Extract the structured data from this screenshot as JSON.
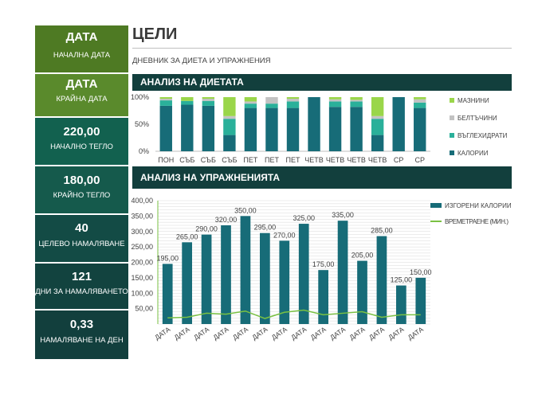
{
  "title": "ЦЕЛИ",
  "subtitle": "ДНЕВНИК ЗА ДИЕТА И УПРАЖНЕНИЯ",
  "colors": {
    "calories": "#176c78",
    "carbs": "#2ab09a",
    "protein": "#c2c2c2",
    "fat": "#9ad64a",
    "header": "#123f3d",
    "line": "#7ac143"
  },
  "tiles": [
    {
      "value": "ДАТА",
      "label": "НАЧАЛНА ДАТА"
    },
    {
      "value": "ДАТА",
      "label": "КРАЙНА ДАТА"
    },
    {
      "value": "220,00",
      "label": "НАЧАЛНО ТЕГЛО"
    },
    {
      "value": "180,00",
      "label": "КРАЙНО ТЕГЛО"
    },
    {
      "value": "40",
      "label": "ЦЕЛЕВО НАМАЛЯВАНЕ"
    },
    {
      "value": "121",
      "label": "ДНИ ЗА НАМАЛЯВАНЕТО"
    },
    {
      "value": "0,33",
      "label": "НАМАЛЯВАНЕ НА ДЕН"
    }
  ],
  "diet": {
    "header": "АНАЛИЗ НА ДИЕТАТА",
    "chart_data": {
      "type": "bar",
      "stacked_percent": true,
      "categories": [
        "ПОН",
        "СЪБ",
        "СЪБ",
        "СЪБ",
        "ПЕТ",
        "ПЕТ",
        "ПЕТ",
        "ЧЕТВ",
        "ЧЕТВ",
        "ЧЕТВ",
        "ЧЕТВ",
        "СР",
        "СР"
      ],
      "yticks": [
        "0%",
        "50%",
        "100%"
      ],
      "ylim": [
        0,
        100
      ],
      "legend_position": "right",
      "series": [
        {
          "name": "КАЛОРИИ",
          "values": [
            84,
            86,
            84,
            30,
            80,
            80,
            80,
            100,
            82,
            82,
            30,
            100,
            80
          ]
        },
        {
          "name": "ВЪГЛЕХИДРАТИ",
          "values": [
            10,
            7,
            9,
            30,
            8,
            8,
            12,
            0,
            10,
            10,
            30,
            0,
            10
          ]
        },
        {
          "name": "БЕЛТЪЧИНИ",
          "values": [
            3,
            0,
            4,
            5,
            4,
            12,
            5,
            0,
            4,
            3,
            5,
            0,
            6
          ]
        },
        {
          "name": "МАЗНИНИ",
          "values": [
            3,
            7,
            3,
            35,
            8,
            0,
            3,
            0,
            4,
            5,
            35,
            0,
            4
          ]
        }
      ]
    }
  },
  "exercise": {
    "header": "АНАЛИЗ НА УПРАЖНЕНИЯТА",
    "chart_data": {
      "type": "bar",
      "categories": [
        "ДАТА",
        "ДАТА",
        "ДАТА",
        "ДАТА",
        "ДАТА",
        "ДАТА",
        "ДАТА",
        "ДАТА",
        "ДАТА",
        "ДАТА",
        "ДАТА",
        "ДАТА",
        "ДАТА",
        "ДАТА"
      ],
      "ylim": [
        0,
        400
      ],
      "yticks": [
        "50,00",
        "100,00",
        "150,00",
        "200,00",
        "250,00",
        "300,00",
        "350,00",
        "400,00"
      ],
      "legend_position": "right",
      "series": [
        {
          "name": "ИЗГОРЕНИ КАЛОРИИ",
          "type": "bar",
          "values": [
            195,
            265,
            290,
            320,
            350,
            295,
            270,
            325,
            175,
            335,
            205,
            285,
            125,
            150
          ],
          "labels": [
            "195,00",
            "265,00",
            "290,00",
            "320,00",
            "350,00",
            "295,00",
            "270,00",
            "325,00",
            "175,00",
            "335,00",
            "205,00",
            "285,00",
            "125,00",
            "150,00"
          ]
        },
        {
          "name": "ВРЕМЕТРАЕНЕ (МИН.)",
          "type": "line",
          "values": [
            20,
            22,
            35,
            32,
            42,
            18,
            38,
            45,
            30,
            35,
            40,
            22,
            30,
            30
          ]
        }
      ]
    }
  }
}
